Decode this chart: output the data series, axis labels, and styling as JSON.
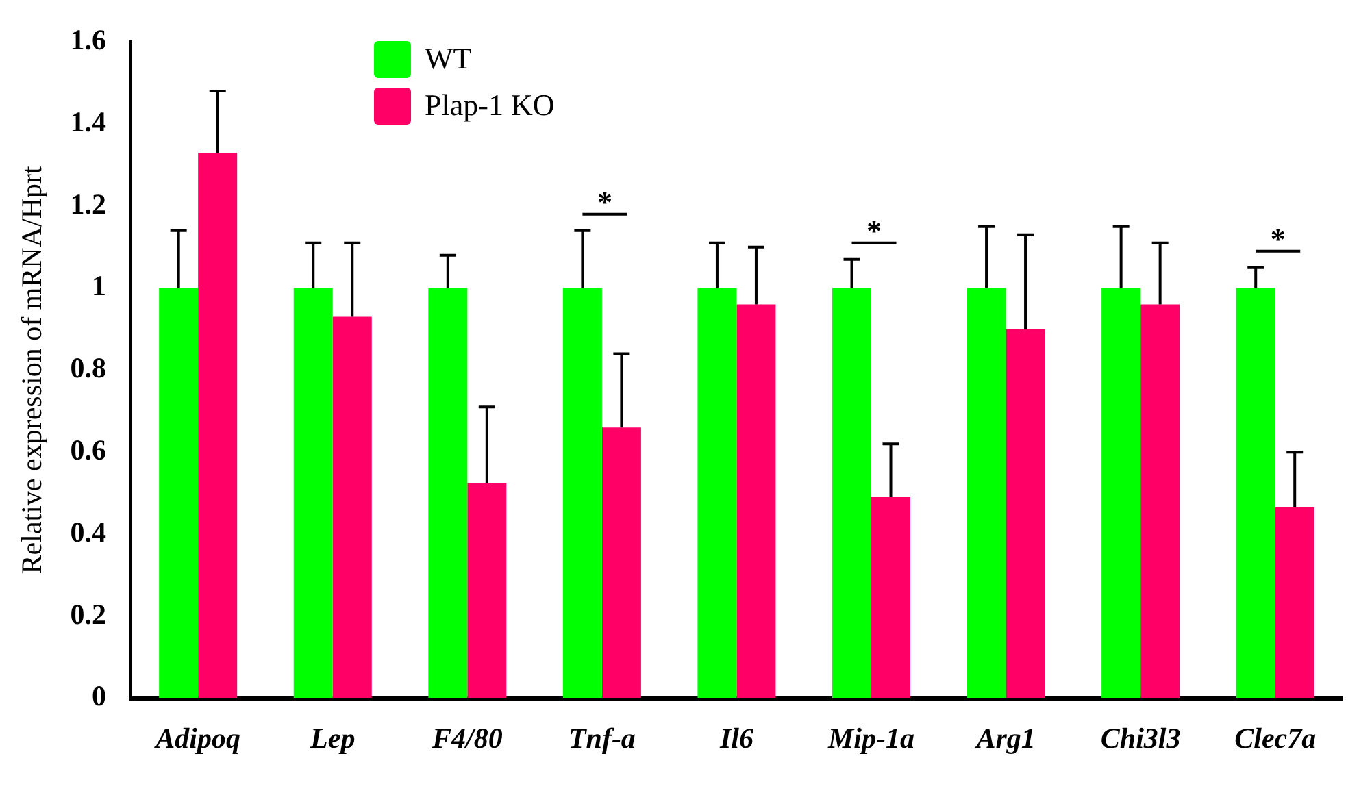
{
  "chart_data": {
    "type": "bar",
    "ylabel": "Relative expression of mRNA/Hprt",
    "categories": [
      "Adipoq",
      "Lep",
      "F4/80",
      "Tnf-a",
      "Il6",
      "Mip-1a",
      "Arg1",
      "Chi3l3",
      "Clec7a"
    ],
    "series": [
      {
        "name": "WT",
        "color": "#00ff00",
        "values": [
          1,
          1,
          1,
          1,
          1,
          1,
          1,
          1,
          1
        ],
        "errors": [
          [
            1,
            1.14
          ],
          [
            1,
            1.11
          ],
          [
            1,
            1.08
          ],
          [
            1,
            1.14
          ],
          [
            1,
            1.11
          ],
          [
            1,
            1.07
          ],
          [
            1,
            1.15
          ],
          [
            1,
            1.15
          ],
          [
            1,
            1.05
          ]
        ]
      },
      {
        "name": "Plap-1 KO",
        "color": "#ff0066",
        "values": [
          1.33,
          0.93,
          0.525,
          0.66,
          0.96,
          0.49,
          0.9,
          0.96,
          0.465
        ],
        "errors": [
          [
            1.33,
            1.48
          ],
          [
            0.93,
            1.11
          ],
          [
            0.525,
            0.71
          ],
          [
            0.66,
            0.84
          ],
          [
            0.96,
            1.1
          ],
          [
            0.49,
            0.62
          ],
          [
            0.9,
            1.13
          ],
          [
            0.96,
            1.11
          ],
          [
            0.465,
            0.6
          ]
        ]
      }
    ],
    "ylim": [
      0,
      1.6
    ],
    "yticks": [
      0,
      {
        "value": 0.2,
        "label": "0.2"
      },
      {
        "value": 0.4,
        "label": "0.4"
      },
      {
        "value": 0.6,
        "label": "0.6"
      },
      {
        "value": 0.8,
        "label": "0.8"
      },
      1,
      {
        "value": 1.2,
        "label": "1.2"
      },
      {
        "value": 1.4,
        "label": "1.4"
      },
      {
        "value": 1.6,
        "label": "1.6"
      }
    ],
    "annotations": [
      "*",
      "*",
      "*"
    ],
    "grid": false,
    "legend": "top left"
  }
}
